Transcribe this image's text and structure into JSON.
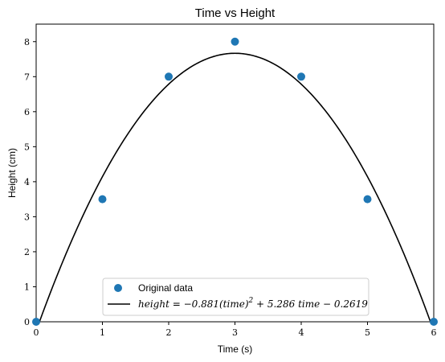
{
  "chart_data": {
    "type": "scatter",
    "title": "Time vs Height",
    "xlabel": "Time (s)",
    "ylabel": "Height (cm)",
    "xlim": [
      0,
      6
    ],
    "ylim": [
      0,
      8.5
    ],
    "xticks": [
      "0",
      "1",
      "2",
      "3",
      "4",
      "5",
      "6"
    ],
    "yticks": [
      "0",
      "1",
      "2",
      "3",
      "4",
      "5",
      "6",
      "7",
      "8"
    ],
    "grid": false,
    "legend_position": "bottom-center",
    "series": [
      {
        "name": "Original data",
        "kind": "scatter",
        "color": "#1f77b4",
        "x": [
          0,
          1,
          2,
          3,
          4,
          5,
          6
        ],
        "y": [
          0,
          3.5,
          7,
          8,
          7,
          3.5,
          0
        ]
      },
      {
        "name": "height = −0.881(time)² + 5.286 time − 0.2619",
        "kind": "line",
        "color": "#000000",
        "coefficients": {
          "a": -0.881,
          "b": 5.286,
          "c": -0.2619
        }
      }
    ],
    "legend": {
      "scatter_label": "Original data",
      "eq_prefix": "height = −0.881(time)",
      "eq_exponent": "2",
      "eq_suffix": " + 5.286 time − 0.2619"
    }
  }
}
